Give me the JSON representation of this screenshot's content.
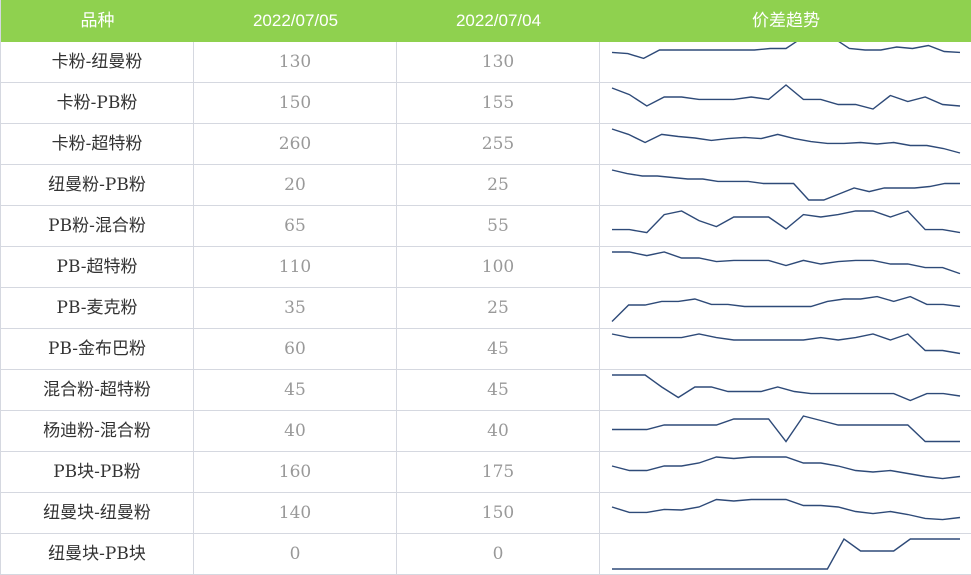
{
  "header": {
    "col_variety": "品种",
    "col_date1": "2022/07/05",
    "col_date2": "2022/07/04",
    "col_trend": "价差趋势"
  },
  "colors": {
    "header_bg": "#8fd14f",
    "sparkline": "#2e4a78",
    "grid": "#d5d8e0"
  },
  "rows": [
    {
      "name": "卡粉-纽曼粉",
      "v1": "130",
      "v2": "130",
      "trend": [
        0.18,
        0.22,
        0.38,
        0.1,
        0.1,
        0.1,
        0.1,
        0.1,
        0.1,
        0.1,
        0.05,
        0.05,
        -0.3,
        -0.3,
        -0.3,
        0.05,
        0.1,
        0.1,
        0.0,
        0.05,
        -0.05,
        0.15,
        0.18
      ]
    },
    {
      "name": "卡粉-PB粉",
      "v1": "150",
      "v2": "155",
      "trend": [
        0.0,
        0.22,
        0.6,
        0.3,
        0.3,
        0.38,
        0.38,
        0.38,
        0.3,
        0.38,
        -0.1,
        0.38,
        0.38,
        0.55,
        0.55,
        0.7,
        0.25,
        0.45,
        0.3,
        0.55,
        0.6
      ]
    },
    {
      "name": "卡粉-超特粉",
      "v1": "260",
      "v2": "255",
      "trend": [
        0.0,
        0.18,
        0.45,
        0.18,
        0.25,
        0.3,
        0.38,
        0.32,
        0.28,
        0.32,
        0.18,
        0.32,
        0.42,
        0.48,
        0.48,
        0.45,
        0.5,
        0.45,
        0.55,
        0.55,
        0.65,
        0.8
      ]
    },
    {
      "name": "纽曼粉-PB粉",
      "v1": "20",
      "v2": "25",
      "trend": [
        0.0,
        0.12,
        0.2,
        0.2,
        0.25,
        0.3,
        0.3,
        0.38,
        0.38,
        0.38,
        0.45,
        0.45,
        0.45,
        1.0,
        1.0,
        0.8,
        0.6,
        0.72,
        0.6,
        0.6,
        0.6,
        0.55,
        0.45,
        0.45
      ]
    },
    {
      "name": "PB粉-混合粉",
      "v1": "65",
      "v2": "55",
      "trend": [
        0.62,
        0.62,
        0.72,
        0.12,
        0.0,
        0.32,
        0.52,
        0.2,
        0.2,
        0.2,
        0.6,
        0.12,
        0.2,
        0.12,
        0.0,
        0.0,
        0.2,
        0.0,
        0.62,
        0.62,
        0.72
      ]
    },
    {
      "name": "PB-超特粉",
      "v1": "110",
      "v2": "100",
      "trend": [
        0.0,
        0.0,
        0.12,
        0.0,
        0.2,
        0.2,
        0.32,
        0.28,
        0.28,
        0.28,
        0.45,
        0.28,
        0.4,
        0.32,
        0.28,
        0.28,
        0.4,
        0.4,
        0.52,
        0.52,
        0.72
      ]
    },
    {
      "name": "PB-麦克粉",
      "v1": "35",
      "v2": "25",
      "trend": [
        0.95,
        0.4,
        0.4,
        0.28,
        0.28,
        0.2,
        0.38,
        0.38,
        0.45,
        0.45,
        0.45,
        0.45,
        0.45,
        0.28,
        0.2,
        0.2,
        0.12,
        0.28,
        0.12,
        0.38,
        0.38,
        0.45
      ]
    },
    {
      "name": "PB-金布巴粉",
      "v1": "60",
      "v2": "45",
      "trend": [
        0.0,
        0.12,
        0.12,
        0.12,
        0.12,
        0.0,
        0.12,
        0.2,
        0.2,
        0.2,
        0.2,
        0.2,
        0.12,
        0.2,
        0.12,
        0.0,
        0.2,
        0.0,
        0.55,
        0.55,
        0.65
      ]
    },
    {
      "name": "混合粉-超特粉",
      "v1": "45",
      "v2": "45",
      "trend": [
        0.0,
        0.0,
        0.0,
        0.4,
        0.75,
        0.4,
        0.4,
        0.55,
        0.55,
        0.55,
        0.4,
        0.55,
        0.62,
        0.62,
        0.62,
        0.62,
        0.62,
        0.62,
        0.85,
        0.62,
        0.62,
        0.7
      ]
    },
    {
      "name": "杨迪粉-混合粉",
      "v1": "40",
      "v2": "40",
      "trend": [
        0.45,
        0.45,
        0.45,
        0.3,
        0.3,
        0.3,
        0.3,
        0.1,
        0.1,
        0.1,
        0.85,
        0.0,
        0.15,
        0.3,
        0.3,
        0.3,
        0.3,
        0.3,
        0.85,
        0.85,
        0.85
      ]
    },
    {
      "name": "PB块-PB粉",
      "v1": "160",
      "v2": "175",
      "trend": [
        0.3,
        0.45,
        0.45,
        0.3,
        0.3,
        0.2,
        0.0,
        0.05,
        0.0,
        0.0,
        0.0,
        0.2,
        0.2,
        0.3,
        0.45,
        0.5,
        0.45,
        0.55,
        0.65,
        0.72,
        0.65
      ]
    },
    {
      "name": "纽曼块-纽曼粉",
      "v1": "140",
      "v2": "150",
      "trend": [
        0.3,
        0.48,
        0.48,
        0.38,
        0.4,
        0.3,
        0.05,
        0.1,
        0.05,
        0.05,
        0.05,
        0.25,
        0.25,
        0.3,
        0.45,
        0.52,
        0.45,
        0.55,
        0.68,
        0.72,
        0.65
      ]
    },
    {
      "name": "纽曼块-PB块",
      "v1": "0",
      "v2": "0",
      "trend": [
        1.0,
        1.0,
        1.0,
        1.0,
        1.0,
        1.0,
        1.0,
        1.0,
        1.0,
        1.0,
        1.0,
        1.0,
        1.0,
        1.0,
        0.0,
        0.4,
        0.4,
        0.4,
        0.0,
        0.0,
        0.0,
        0.0
      ]
    }
  ]
}
